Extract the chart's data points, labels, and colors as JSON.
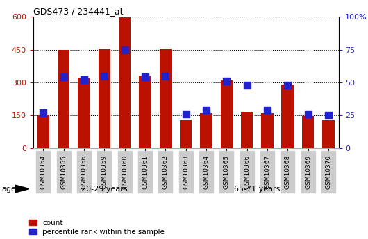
{
  "title": "GDS473 / 234441_at",
  "categories": [
    "GSM10354",
    "GSM10355",
    "GSM10356",
    "GSM10359",
    "GSM10360",
    "GSM10361",
    "GSM10362",
    "GSM10363",
    "GSM10364",
    "GSM10365",
    "GSM10366",
    "GSM10367",
    "GSM10368",
    "GSM10369",
    "GSM10370"
  ],
  "counts": [
    150,
    448,
    322,
    453,
    597,
    332,
    453,
    130,
    160,
    308,
    168,
    160,
    290,
    148,
    130
  ],
  "percentiles": [
    27,
    54,
    52,
    55,
    75,
    54,
    55,
    26,
    29,
    51,
    48,
    29,
    48,
    26,
    25
  ],
  "group1_label": "20-29 years",
  "group2_label": "65-71 years",
  "group1_count": 7,
  "group2_count": 8,
  "bar_color": "#bb1100",
  "dot_color": "#2222cc",
  "group1_bg": "#ccffcc",
  "group2_bg": "#44ee44",
  "tick_bg": "#cccccc",
  "ylim_left": [
    0,
    600
  ],
  "ylim_right": [
    0,
    100
  ],
  "yticks_left": [
    0,
    150,
    300,
    450,
    600
  ],
  "yticks_right": [
    0,
    25,
    50,
    75,
    100
  ],
  "legend_count": "count",
  "legend_pct": "percentile rank within the sample",
  "age_label": "age"
}
